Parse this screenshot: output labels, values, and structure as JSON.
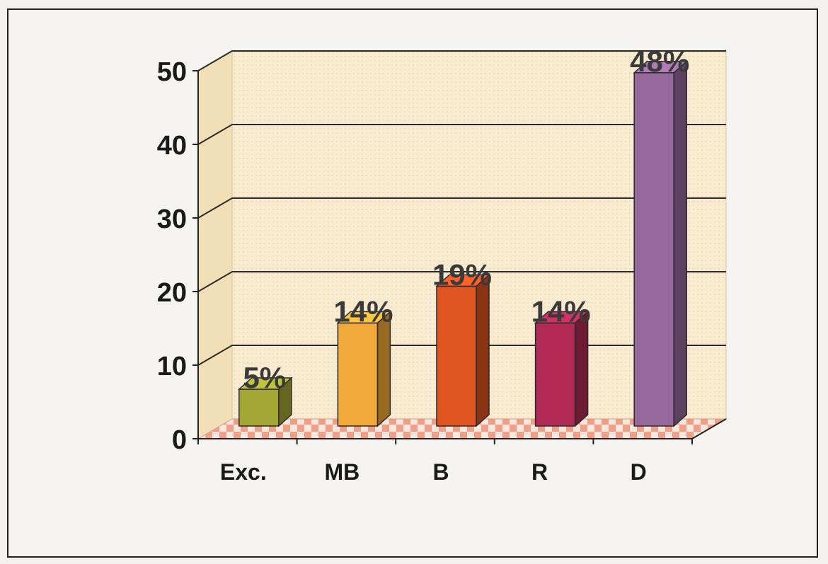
{
  "chart_data": {
    "type": "bar",
    "categories": [
      "Exc.",
      "MB",
      "B",
      "R",
      "D"
    ],
    "values": [
      5,
      14,
      19,
      14,
      48
    ],
    "data_labels": [
      "5%",
      "14%",
      "19%",
      "14%",
      "48%"
    ],
    "ylim": [
      0,
      50
    ],
    "yticks": [
      0,
      10,
      20,
      30,
      40,
      50
    ],
    "ytick_labels": [
      "0",
      "10",
      "20",
      "30",
      "40",
      "50"
    ],
    "grid": true,
    "three_d": true,
    "colors": [
      "#a3a534",
      "#f2a93a",
      "#e0541f",
      "#b02a55",
      "#96699c"
    ],
    "back_wall_color": "#f7e8c8",
    "floor_color": "#f4b7a3"
  }
}
